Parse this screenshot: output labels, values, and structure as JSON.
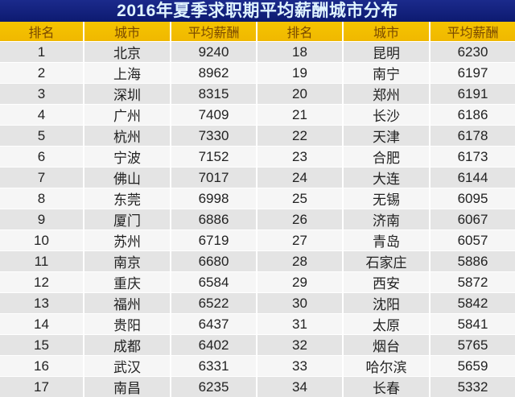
{
  "chart_data": {
    "type": "table",
    "title": "2016年夏季求职期平均薪酬城市分布",
    "columns": [
      "排名",
      "城市",
      "平均薪酬",
      "排名",
      "城市",
      "平均薪酬"
    ],
    "rows": [
      {
        "left": [
          1,
          "北京",
          9240
        ],
        "right": [
          18,
          "昆明",
          6230
        ]
      },
      {
        "left": [
          2,
          "上海",
          8962
        ],
        "right": [
          19,
          "南宁",
          6197
        ]
      },
      {
        "left": [
          3,
          "深圳",
          8315
        ],
        "right": [
          20,
          "郑州",
          6191
        ]
      },
      {
        "left": [
          4,
          "广州",
          7409
        ],
        "right": [
          21,
          "长沙",
          6186
        ]
      },
      {
        "left": [
          5,
          "杭州",
          7330
        ],
        "right": [
          22,
          "天津",
          6178
        ]
      },
      {
        "left": [
          6,
          "宁波",
          7152
        ],
        "right": [
          23,
          "合肥",
          6173
        ]
      },
      {
        "left": [
          7,
          "佛山",
          7017
        ],
        "right": [
          24,
          "大连",
          6144
        ]
      },
      {
        "left": [
          8,
          "东莞",
          6998
        ],
        "right": [
          25,
          "无锡",
          6095
        ]
      },
      {
        "left": [
          9,
          "厦门",
          6886
        ],
        "right": [
          26,
          "济南",
          6067
        ]
      },
      {
        "left": [
          10,
          "苏州",
          6719
        ],
        "right": [
          27,
          "青岛",
          6057
        ]
      },
      {
        "left": [
          11,
          "南京",
          6680
        ],
        "right": [
          28,
          "石家庄",
          5886
        ]
      },
      {
        "left": [
          12,
          "重庆",
          6584
        ],
        "right": [
          29,
          "西安",
          5872
        ]
      },
      {
        "left": [
          13,
          "福州",
          6522
        ],
        "right": [
          30,
          "沈阳",
          5842
        ]
      },
      {
        "left": [
          14,
          "贵阳",
          6437
        ],
        "right": [
          31,
          "太原",
          5841
        ]
      },
      {
        "left": [
          15,
          "成都",
          6402
        ],
        "right": [
          32,
          "烟台",
          5765
        ]
      },
      {
        "left": [
          16,
          "武汉",
          6331
        ],
        "right": [
          33,
          "哈尔滨",
          5659
        ]
      },
      {
        "left": [
          17,
          "南昌",
          6235
        ],
        "right": [
          34,
          "长春",
          5332
        ]
      }
    ],
    "colors": {
      "title_bg": "#12208a",
      "header_bg": "#f3c000",
      "row_odd": "#e4e4e4",
      "row_even": "#f6f6f6"
    }
  }
}
